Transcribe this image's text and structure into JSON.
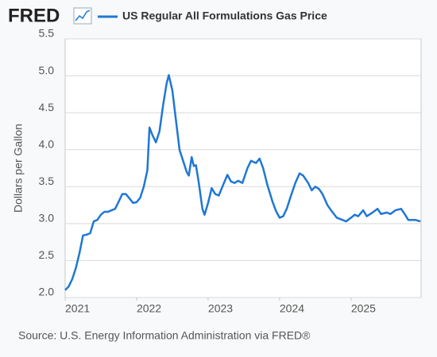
{
  "logo": "FRED",
  "chart_data": {
    "type": "line",
    "y_label": "Dollars per Gallon",
    "source": "Source: U.S. Energy Information Administration via FRED®",
    "xlim": [
      2021,
      2025.98
    ],
    "xticks": [
      2021,
      2022,
      2023,
      2024,
      2025
    ],
    "ylim": [
      2.0,
      5.5
    ],
    "yticks": [
      {
        "value": 2,
        "label": "2.0"
      },
      2.5,
      {
        "value": 3,
        "label": "3.0"
      },
      3.5,
      {
        "value": 4,
        "label": "4.0"
      },
      4.5,
      {
        "value": 5,
        "label": "5.0"
      },
      5.5
    ],
    "grid": true,
    "x": [
      2021.0,
      2021.05,
      2021.1,
      2021.15,
      2021.2,
      2021.25,
      2021.3,
      2021.35,
      2021.4,
      2021.45,
      2021.5,
      2021.55,
      2021.6,
      2021.65,
      2021.7,
      2021.75,
      2021.8,
      2021.85,
      2021.9,
      2021.95,
      2022.0,
      2022.05,
      2022.1,
      2022.15,
      2022.18,
      2022.22,
      2022.27,
      2022.32,
      2022.37,
      2022.42,
      2022.45,
      2022.5,
      2022.55,
      2022.6,
      2022.65,
      2022.7,
      2022.73,
      2022.77,
      2022.8,
      2022.83,
      2022.87,
      2022.92,
      2022.95,
      2023.0,
      2023.05,
      2023.1,
      2023.15,
      2023.2,
      2023.27,
      2023.32,
      2023.37,
      2023.42,
      2023.48,
      2023.55,
      2023.6,
      2023.67,
      2023.72,
      2023.77,
      2023.83,
      2023.9,
      2023.95,
      2024.0,
      2024.05,
      2024.1,
      2024.15,
      2024.22,
      2024.28,
      2024.33,
      2024.4,
      2024.45,
      2024.5,
      2024.55,
      2024.6,
      2024.67,
      2024.72,
      2024.8,
      2024.88,
      2024.93,
      2025.0,
      2025.05,
      2025.1,
      2025.17,
      2025.22,
      2025.3,
      2025.37,
      2025.42,
      2025.5,
      2025.55,
      2025.62,
      2025.7,
      2025.75,
      2025.8,
      2025.85,
      2025.9,
      2025.97
    ],
    "series": [
      {
        "name": "US Regular All Formulations Gas Price",
        "color": "#1f77d4",
        "values": [
          2.1,
          2.15,
          2.25,
          2.4,
          2.6,
          2.84,
          2.85,
          2.87,
          3.03,
          3.05,
          3.12,
          3.16,
          3.16,
          3.18,
          3.2,
          3.3,
          3.4,
          3.4,
          3.34,
          3.28,
          3.29,
          3.35,
          3.5,
          3.72,
          4.3,
          4.2,
          4.1,
          4.25,
          4.6,
          4.9,
          5.01,
          4.8,
          4.4,
          4.0,
          3.85,
          3.7,
          3.65,
          3.9,
          3.78,
          3.79,
          3.55,
          3.2,
          3.12,
          3.28,
          3.48,
          3.4,
          3.38,
          3.5,
          3.66,
          3.57,
          3.55,
          3.58,
          3.55,
          3.75,
          3.85,
          3.82,
          3.88,
          3.75,
          3.52,
          3.3,
          3.17,
          3.08,
          3.1,
          3.2,
          3.35,
          3.55,
          3.68,
          3.65,
          3.55,
          3.45,
          3.5,
          3.47,
          3.4,
          3.25,
          3.18,
          3.08,
          3.05,
          3.03,
          3.08,
          3.12,
          3.1,
          3.18,
          3.1,
          3.15,
          3.2,
          3.13,
          3.15,
          3.13,
          3.18,
          3.2,
          3.13,
          3.05,
          3.05,
          3.05,
          3.03
        ]
      }
    ]
  }
}
